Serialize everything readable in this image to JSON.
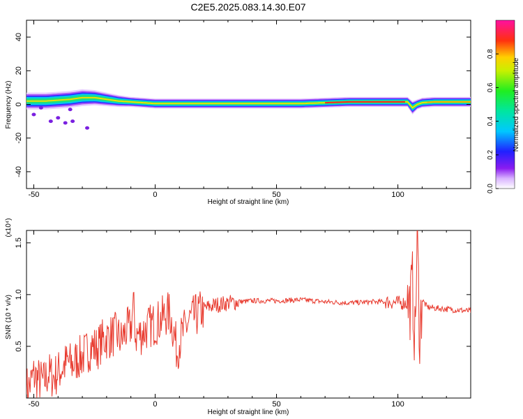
{
  "title": "C2E5.2025.083.14.30.E07",
  "chart_data": [
    {
      "type": "heatmap",
      "xlabel": "Height of straight line (km)",
      "ylabel": "Frequency (Hz)",
      "xlim": [
        -53,
        130
      ],
      "ylim": [
        -50,
        50
      ],
      "xticks": [
        -50,
        0,
        50,
        100
      ],
      "yticks": [
        -40,
        -20,
        0,
        20,
        40
      ],
      "colorbar": {
        "label": "Normalized spectral amplitude",
        "range": [
          0,
          1
        ],
        "ticks": [
          0.0,
          0.2,
          0.4,
          0.6,
          0.8
        ],
        "tick_labels": [
          "0.0",
          "0.2",
          "0.4",
          "0.6",
          "0.8"
        ],
        "colormap": "rainbow (white-purple-blue-cyan-green-yellow-red-magenta)"
      },
      "ridge": {
        "x": [
          -52,
          -45,
          -40,
          -35,
          -30,
          -25,
          -20,
          -15,
          -10,
          -5,
          0,
          5,
          10,
          15,
          20,
          25,
          30,
          40,
          50,
          60,
          70,
          80,
          90,
          100,
          104,
          106,
          108,
          110,
          115,
          120,
          130
        ],
        "center_hz": [
          2,
          2,
          2.5,
          3,
          4,
          4,
          3,
          2,
          1.5,
          1,
          0.5,
          0.5,
          0.5,
          0.5,
          0.5,
          0.5,
          0.5,
          0.5,
          0.5,
          0.5,
          1,
          1.5,
          1.5,
          1.5,
          1.5,
          -2,
          0,
          1,
          1.5,
          1.5,
          1.5
        ],
        "half_width_hz": [
          5,
          5,
          5,
          5,
          5,
          4.5,
          4,
          3.5,
          3,
          3,
          3,
          3,
          3,
          3,
          3,
          3,
          3,
          3,
          3,
          3,
          3,
          3,
          3,
          3,
          3,
          4,
          3,
          3,
          3,
          3,
          3
        ]
      },
      "scatter_blobs": {
        "x": [
          -50,
          -47,
          -43,
          -40,
          -37,
          -35,
          -34,
          -28
        ],
        "y": [
          -6,
          -2,
          -10,
          -8,
          -11,
          -3,
          -10,
          -14
        ]
      }
    },
    {
      "type": "line",
      "xlabel": "Height of straight line (km)",
      "ylabel": "SNR (10 * v/v)",
      "y_multiplier": "(x10⁴)",
      "xlim": [
        -53,
        130
      ],
      "ylim": [
        0,
        1.62
      ],
      "xticks": [
        -50,
        0,
        50,
        100
      ],
      "yticks": [
        0.5,
        1.0,
        1.5
      ],
      "series": [
        {
          "color": "#e83a2e",
          "x": [
            -52,
            -50,
            -48,
            -46,
            -44,
            -42,
            -40,
            -38,
            -36,
            -34,
            -32,
            -30,
            -28,
            -26,
            -24,
            -22,
            -20,
            -18,
            -16,
            -14,
            -12,
            -10,
            -9,
            -8,
            -6,
            -4,
            -2,
            0,
            2,
            4,
            6,
            8,
            9,
            10,
            12,
            14,
            16,
            18,
            20,
            22,
            25,
            30,
            35,
            40,
            50,
            60,
            70,
            80,
            90,
            95,
            100,
            103,
            105,
            106,
            107,
            108,
            109,
            110,
            112,
            115,
            120,
            125,
            130
          ],
          "y": [
            0.1,
            0.22,
            0.18,
            0.15,
            0.24,
            0.2,
            0.25,
            0.3,
            0.35,
            0.32,
            0.38,
            0.4,
            0.45,
            0.5,
            0.48,
            0.55,
            0.58,
            0.6,
            0.62,
            0.56,
            0.65,
            0.68,
            0.9,
            0.6,
            0.62,
            0.66,
            0.7,
            0.72,
            0.75,
            0.8,
            0.82,
            0.6,
            0.45,
            0.55,
            0.65,
            0.75,
            0.78,
            0.82,
            0.86,
            0.88,
            0.9,
            0.92,
            0.93,
            0.94,
            0.94,
            0.95,
            0.93,
            0.92,
            0.93,
            0.93,
            0.92,
            0.92,
            0.9,
            1.1,
            0.55,
            1.55,
            0.6,
            0.95,
            0.88,
            0.87,
            0.86,
            0.85,
            0.84
          ]
        }
      ]
    }
  ]
}
